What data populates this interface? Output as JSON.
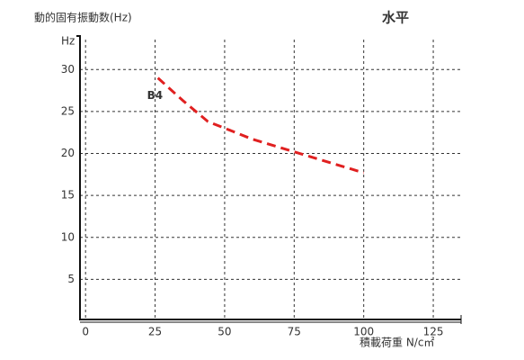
{
  "chart_data": {
    "type": "line",
    "title": "動的固有振動数(Hz)",
    "subtitle": "水平",
    "y_unit": "Hz",
    "x_label": "積載荷重 N/c㎡",
    "x": [
      26,
      35,
      44,
      60,
      75,
      100
    ],
    "series": [
      {
        "name": "B4",
        "color": "#e02020",
        "values": [
          29,
          26.3,
          23.8,
          21.7,
          20.2,
          17.7
        ]
      }
    ],
    "xlim": [
      -2,
      135
    ],
    "xticks": [
      0,
      25,
      50,
      75,
      100,
      125
    ],
    "ylim": [
      0,
      34
    ],
    "yticks": [
      5,
      10,
      15,
      20,
      25,
      30
    ],
    "grid": true
  }
}
